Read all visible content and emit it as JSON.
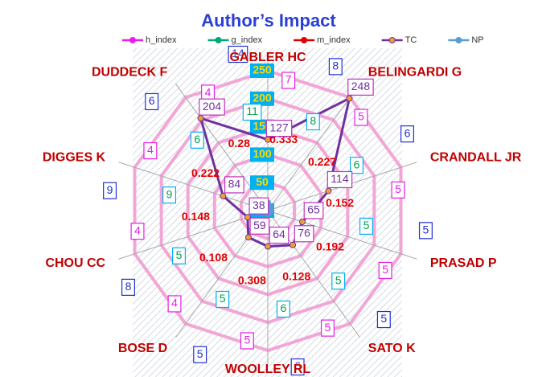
{
  "chart_data": {
    "type": "radar",
    "title": "Author’s Impact",
    "categories": [
      "GABLER HC",
      "BELINGARDI G",
      "CRANDALL JR",
      "PRASAD P",
      "SATO K",
      "WOOLLEY RL",
      "BOSE D",
      "CHOU CC",
      "DIGGES K",
      "DUDDECK F"
    ],
    "series": [
      {
        "name": "h_index",
        "color": "#e81ee8",
        "values": [
          7,
          5,
          5,
          5,
          5,
          5,
          4,
          4,
          4,
          4
        ]
      },
      {
        "name": "g_index",
        "color": "#00a878",
        "values": [
          11,
          8,
          6,
          5,
          5,
          6,
          5,
          5,
          9,
          6
        ]
      },
      {
        "name": "m_index",
        "color": "#e00000",
        "values": [
          0.333,
          0.227,
          0.152,
          0.192,
          0.128,
          0.308,
          0.108,
          0.148,
          0.222,
          0.28
        ]
      },
      {
        "name": "TC",
        "color": "#7030a0",
        "values": [
          127,
          248,
          114,
          65,
          76,
          64,
          59,
          38,
          84,
          204
        ]
      },
      {
        "name": "NP",
        "color": "#5b9bd5",
        "values": [
          14,
          8,
          6,
          5,
          5,
          6,
          5,
          8,
          9,
          6
        ]
      }
    ],
    "ylim": [
      0,
      250
    ],
    "yticks": [
      0,
      50,
      100,
      150,
      200,
      250
    ],
    "grid": true,
    "legend": "top"
  }
}
